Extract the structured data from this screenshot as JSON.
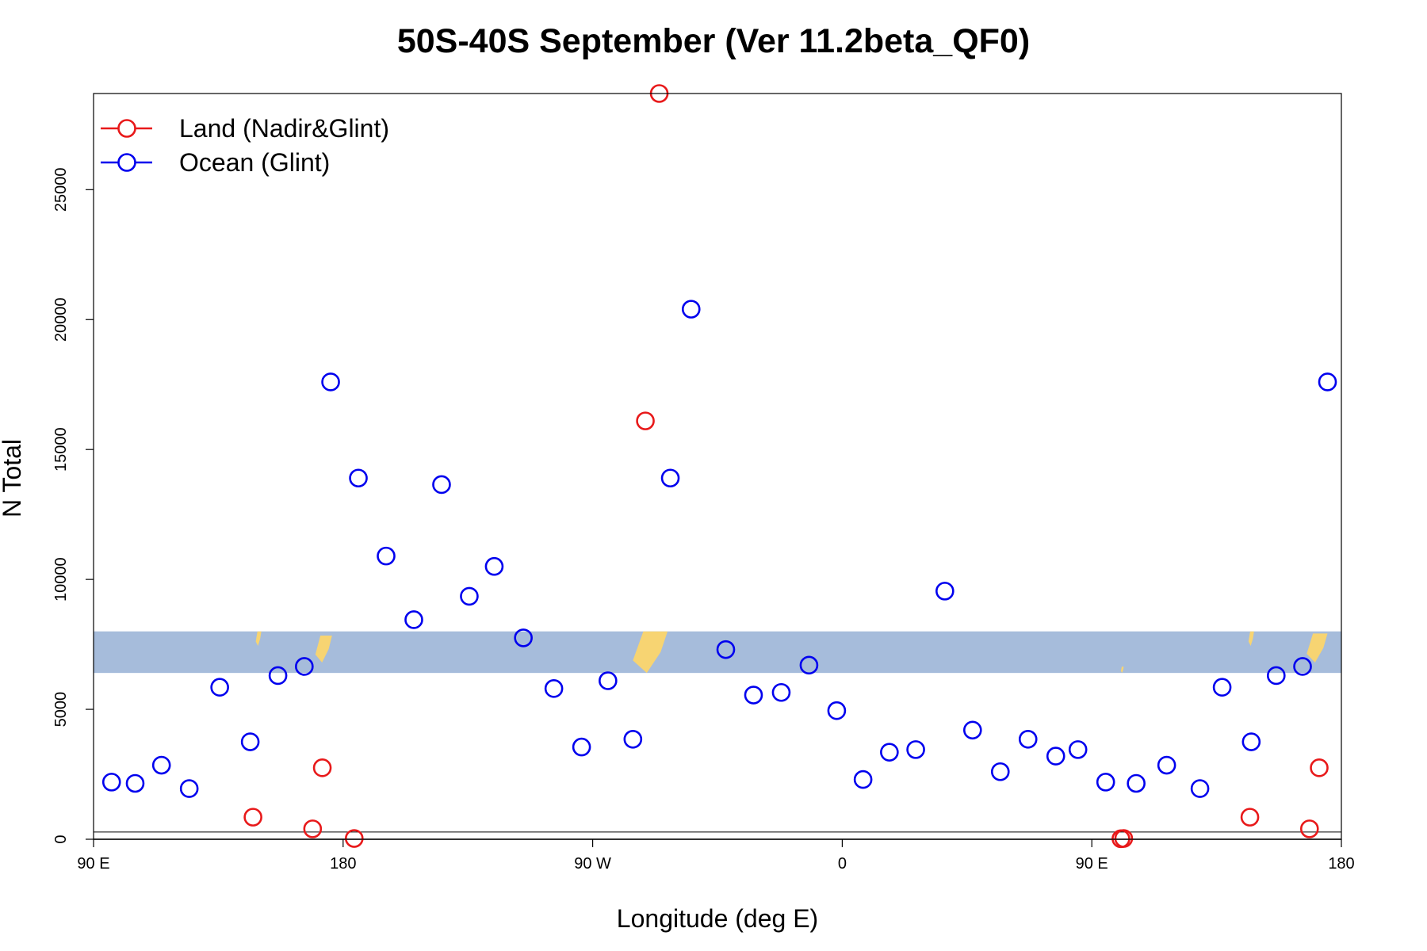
{
  "chart_data": {
    "type": "scatter",
    "title": "50S-40S September (Ver 11.2beta_QF0)",
    "xlabel": "Longitude (deg E)",
    "ylabel": "N Total",
    "xlim": [
      90,
      540
    ],
    "ylim": [
      0,
      28700
    ],
    "x_ticks": [
      {
        "value": 90,
        "label": "90 E"
      },
      {
        "value": 180,
        "label": "180"
      },
      {
        "value": 270,
        "label": "90 W"
      },
      {
        "value": 360,
        "label": "0"
      },
      {
        "value": 450,
        "label": "90 E"
      },
      {
        "value": 540,
        "label": "180"
      }
    ],
    "y_ticks": [
      {
        "value": 0,
        "label": "0"
      },
      {
        "value": 5000,
        "label": "5000"
      },
      {
        "value": 10000,
        "label": "10000"
      },
      {
        "value": 15000,
        "label": "15000"
      },
      {
        "value": 20000,
        "label": "20000"
      },
      {
        "value": 25000,
        "label": "25000"
      }
    ],
    "legend_position": "top-left",
    "grid": false,
    "background_band": {
      "y_range": [
        6400,
        8000
      ],
      "ocean_color": "#a6bcdb",
      "land_color": "#f7d472"
    },
    "series": [
      {
        "name": "Land (Nadir&Glint)",
        "color": "#e8191a",
        "x": [
          147.5,
          169,
          172.5,
          184,
          289,
          294,
          460.5,
          461.5,
          507,
          528.5,
          532
        ],
        "y": [
          850,
          400,
          2750,
          30,
          16100,
          28700,
          20,
          30,
          850,
          400,
          2750
        ]
      },
      {
        "name": "Ocean (Glint)",
        "color": "#0000ee",
        "x": [
          96.5,
          105,
          114.5,
          124.5,
          135.5,
          146.5,
          156.5,
          166,
          175.5,
          185.5,
          195.5,
          205.5,
          215.5,
          225.5,
          234.5,
          245,
          256,
          266,
          275.5,
          284.5,
          298,
          305.5,
          318,
          328,
          338,
          348,
          358,
          367.5,
          377,
          386.5,
          397,
          407,
          417,
          427,
          437,
          445,
          455,
          466,
          477,
          489,
          497,
          507.5,
          516.5,
          526,
          535
        ],
        "y": [
          2200,
          2150,
          2850,
          1950,
          5850,
          3750,
          6300,
          6650,
          17600,
          13900,
          10900,
          8450,
          13650,
          9350,
          10500,
          7750,
          5800,
          3550,
          6100,
          3850,
          13900,
          20400,
          7300,
          5550,
          5650,
          6700,
          4950,
          2300,
          3350,
          3450,
          9550,
          4200,
          2600,
          3850,
          3200,
          3450,
          2200,
          2150,
          2850,
          1950,
          5850,
          3750,
          6300,
          6650,
          17600
        ]
      }
    ]
  }
}
